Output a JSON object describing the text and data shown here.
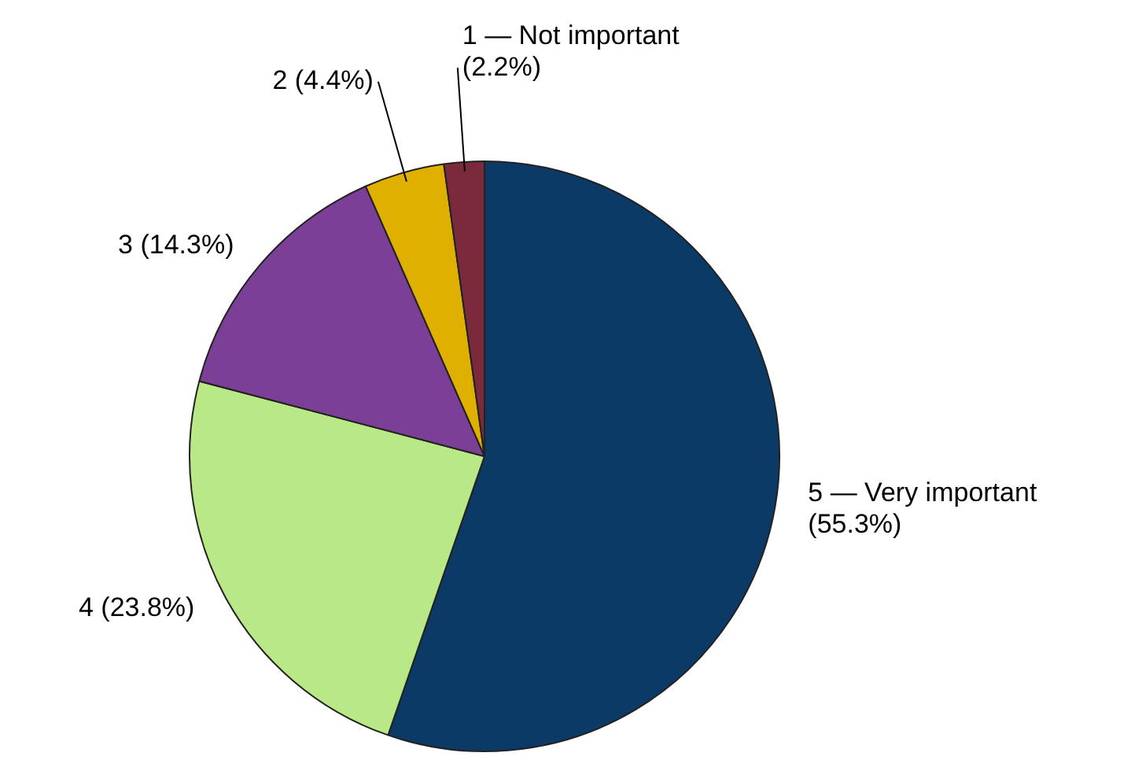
{
  "chart_data": {
    "type": "pie",
    "categories": [
      "5 — Very important",
      "4",
      "3",
      "2",
      "1 — Not important"
    ],
    "values": [
      55.3,
      23.8,
      14.3,
      4.4,
      2.2
    ],
    "value_labels": [
      "(55.3%)",
      "(23.8%)",
      "(14.3%)",
      "(4.4%)",
      "(2.2%)"
    ],
    "colors": [
      "#0b3a66",
      "#b8e986",
      "#7b3f98",
      "#e0b000",
      "#7a2a3a"
    ],
    "legend": false
  }
}
